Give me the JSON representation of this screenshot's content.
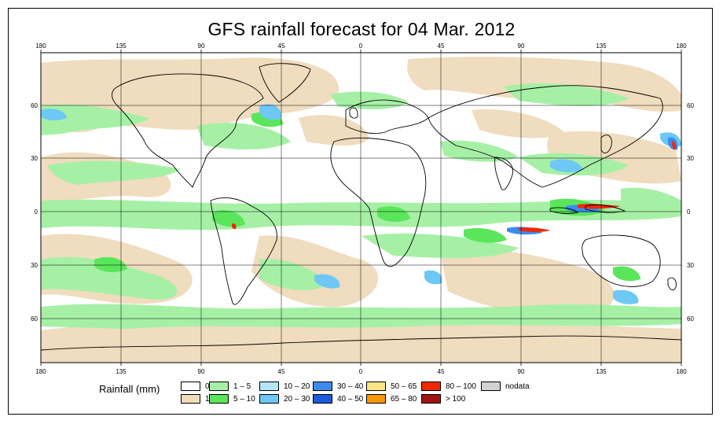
{
  "title": "GFS rainfall forecast for 04 Mar. 2012",
  "map": {
    "projection": "equirectangular",
    "lon_range": [
      -180,
      180
    ],
    "lat_range": [
      -90,
      90
    ],
    "grid": true,
    "top_ticks": [
      "180",
      "135",
      "90",
      "45",
      "0",
      "45",
      "90",
      "135",
      "180"
    ],
    "bottom_ticks": [
      "180",
      "135",
      "90",
      "45",
      "0",
      "45",
      "90",
      "135",
      "180"
    ],
    "left_ticks": [
      "60",
      "30",
      "0",
      "30",
      "60"
    ],
    "right_ticks": [
      "60",
      "30",
      "0",
      "30",
      "60"
    ]
  },
  "legend": {
    "label": "Rainfall (mm)",
    "items": [
      {
        "label": "0",
        "color": "#ffffff"
      },
      {
        "label": "1",
        "color": "#f0dcbe"
      },
      {
        "label": "1 – 5",
        "color": "#a6f0a6"
      },
      {
        "label": "5 – 10",
        "color": "#5ae65a"
      },
      {
        "label": "10 – 20",
        "color": "#b4e6fa"
      },
      {
        "label": "20 – 30",
        "color": "#6ec8f5"
      },
      {
        "label": "30 – 40",
        "color": "#3c8cf0"
      },
      {
        "label": "40 – 50",
        "color": "#1e5adc"
      },
      {
        "label": "50 – 65",
        "color": "#fae682"
      },
      {
        "label": "65 – 80",
        "color": "#fa9600"
      },
      {
        "label": "80 – 100",
        "color": "#f02800"
      },
      {
        "label": "> 100",
        "color": "#a01414"
      },
      {
        "label": "nodata",
        "color": "#d2d2d2"
      }
    ]
  }
}
